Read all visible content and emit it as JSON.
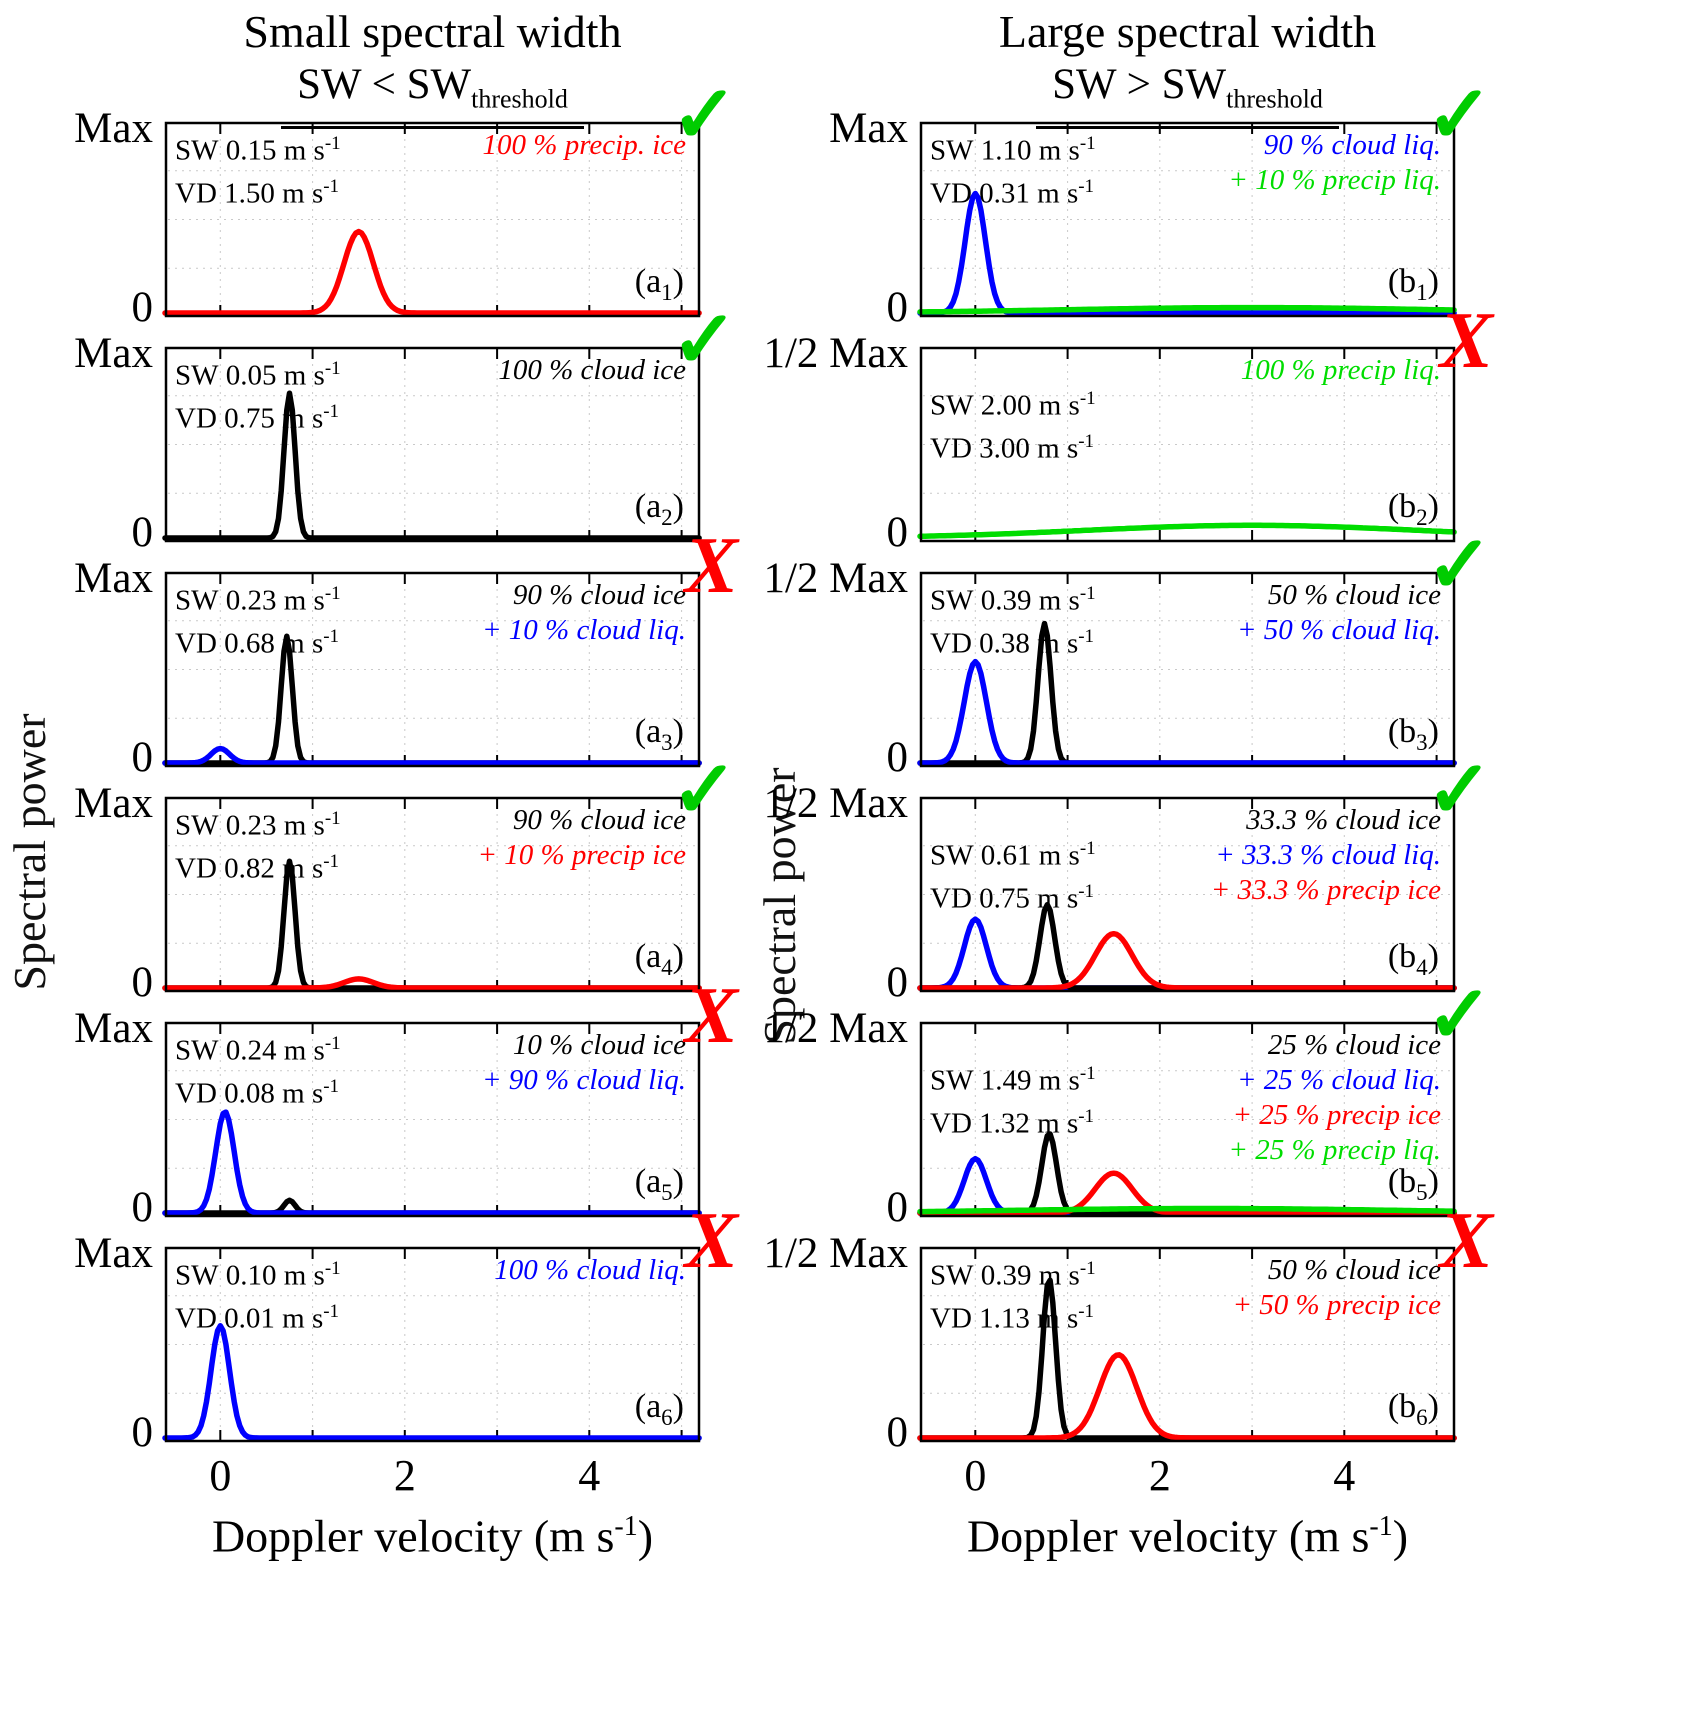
{
  "figure": {
    "headers": [
      {
        "title": "Small spectral width",
        "formula": "SW < SW",
        "formula_sub": "threshold"
      },
      {
        "title": "Large spectral width",
        "formula": "SW > SW",
        "formula_sub": "threshold"
      }
    ],
    "ylabel": "Spectral power",
    "xlabel_pre": "Doppler velocity (m s",
    "xlabel_sup": "-1",
    "xlabel_post": ")",
    "sw_prefix": "SW",
    "vd_prefix": "VD",
    "unit": "m s",
    "unit_sup": "-1",
    "check_glyph": "✓",
    "cross_glyph": "X",
    "colors": {
      "check": "#00cc00",
      "cross": "#ff0000",
      "precip_ice": "#ff0000",
      "cloud_ice": "#000000",
      "cloud_liq": "#0000ff",
      "precip_liq": "#00dd00"
    }
  },
  "chart_data": {
    "type": "line",
    "x_range": [
      -0.6,
      5.2
    ],
    "x_ticks": [
      "0",
      "2",
      "4"
    ],
    "x_tick_values": [
      0,
      2,
      4
    ],
    "y_axis": {
      "left_column_top": "Max",
      "right_column_top": "1/2 Max",
      "bottom": "0"
    },
    "panels": [
      {
        "id": "a1",
        "col": 0,
        "row": 0,
        "ymax": "Max",
        "ymin": "0",
        "sw": "0.15",
        "vd": "1.50",
        "verdict": "check",
        "label": {
          "pre": "(a",
          "sub": "1",
          "post": ")"
        },
        "composition": [
          {
            "text": "100 % precip. ice",
            "color": "#ff0000"
          }
        ],
        "peaks": [
          {
            "color": "#ff0000",
            "center": 1.5,
            "sigma": 0.16,
            "amp": 0.45
          }
        ]
      },
      {
        "id": "a2",
        "col": 0,
        "row": 1,
        "ymax": "Max",
        "ymin": "0",
        "sw": "0.05",
        "vd": "0.75",
        "verdict": "check",
        "label": {
          "pre": "(a",
          "sub": "2",
          "post": ")"
        },
        "composition": [
          {
            "text": "100 % cloud ice",
            "color": "#000000"
          }
        ],
        "peaks": [
          {
            "color": "#000000",
            "center": 0.75,
            "sigma": 0.06,
            "amp": 0.8
          }
        ]
      },
      {
        "id": "a3",
        "col": 0,
        "row": 2,
        "ymax": "Max",
        "ymin": "0",
        "sw": "0.23",
        "vd": "0.68",
        "verdict": "cross",
        "label": {
          "pre": "(a",
          "sub": "3",
          "post": ")"
        },
        "composition": [
          {
            "text": "90 % cloud ice",
            "color": "#000000"
          },
          {
            "text": "+ 10 % cloud liq.",
            "color": "#0000ff"
          }
        ],
        "peaks": [
          {
            "color": "#000000",
            "center": 0.72,
            "sigma": 0.06,
            "amp": 0.7
          },
          {
            "color": "#0000ff",
            "center": 0.0,
            "sigma": 0.1,
            "amp": 0.08
          }
        ]
      },
      {
        "id": "a4",
        "col": 0,
        "row": 3,
        "ymax": "Max",
        "ymin": "0",
        "sw": "0.23",
        "vd": "0.82",
        "verdict": "check",
        "label": {
          "pre": "(a",
          "sub": "4",
          "post": ")"
        },
        "composition": [
          {
            "text": "90 % cloud ice",
            "color": "#000000"
          },
          {
            "text": "+ 10 % precip ice",
            "color": "#ff0000"
          }
        ],
        "peaks": [
          {
            "color": "#000000",
            "center": 0.75,
            "sigma": 0.06,
            "amp": 0.7
          },
          {
            "color": "#ff0000",
            "center": 1.5,
            "sigma": 0.16,
            "amp": 0.05
          }
        ]
      },
      {
        "id": "a5",
        "col": 0,
        "row": 4,
        "ymax": "Max",
        "ymin": "0",
        "sw": "0.24",
        "vd": "0.08",
        "verdict": "cross",
        "label": {
          "pre": "(a",
          "sub": "5",
          "post": ")"
        },
        "composition": [
          {
            "text": "10 % cloud ice",
            "color": "#000000"
          },
          {
            "text": "+ 90 % cloud liq.",
            "color": "#0000ff"
          }
        ],
        "peaks": [
          {
            "color": "#000000",
            "center": 0.75,
            "sigma": 0.06,
            "amp": 0.07
          },
          {
            "color": "#0000ff",
            "center": 0.05,
            "sigma": 0.1,
            "amp": 0.56
          }
        ]
      },
      {
        "id": "a6",
        "col": 0,
        "row": 5,
        "ymax": "Max",
        "ymin": "0",
        "sw": "0.10",
        "vd": "0.01",
        "verdict": "cross",
        "label": {
          "pre": "(a",
          "sub": "6",
          "post": ")"
        },
        "composition": [
          {
            "text": "100 % cloud liq.",
            "color": "#0000ff"
          }
        ],
        "peaks": [
          {
            "color": "#0000ff",
            "center": 0.0,
            "sigma": 0.1,
            "amp": 0.62
          }
        ]
      },
      {
        "id": "b1",
        "col": 1,
        "row": 0,
        "ymax": "Max",
        "ymin": "0",
        "sw": "1.10",
        "vd": "0.31",
        "verdict": "check",
        "label": {
          "pre": "(b",
          "sub": "1",
          "post": ")"
        },
        "composition": [
          {
            "text": "90 % cloud liq.",
            "color": "#0000ff"
          },
          {
            "text": "+ 10 % precip liq.",
            "color": "#00dd00"
          }
        ],
        "peaks": [
          {
            "color": "#0000ff",
            "center": 0.0,
            "sigma": 0.11,
            "amp": 0.66
          },
          {
            "color": "#00dd00",
            "center": 3.0,
            "sigma": 2.0,
            "amp": 0.03
          }
        ]
      },
      {
        "id": "b2",
        "col": 1,
        "row": 1,
        "ymax": "1/2 Max",
        "ymin": "0",
        "sw": "2.00",
        "vd": "3.00",
        "verdict": "cross",
        "label": {
          "pre": "(b",
          "sub": "2",
          "post": ")"
        },
        "composition": [
          {
            "text": "100 % precip liq.",
            "color": "#00dd00"
          }
        ],
        "peaks": [
          {
            "color": "#00dd00",
            "center": 3.0,
            "sigma": 1.8,
            "amp": 0.07
          }
        ]
      },
      {
        "id": "b3",
        "col": 1,
        "row": 2,
        "ymax": "1/2 Max",
        "ymin": "0",
        "sw": "0.39",
        "vd": "0.38",
        "verdict": "check",
        "label": {
          "pre": "(b",
          "sub": "3",
          "post": ")"
        },
        "composition": [
          {
            "text": "50 % cloud ice",
            "color": "#000000"
          },
          {
            "text": "+ 50 % cloud liq.",
            "color": "#0000ff"
          }
        ],
        "peaks": [
          {
            "color": "#000000",
            "center": 0.75,
            "sigma": 0.07,
            "amp": 0.77
          },
          {
            "color": "#0000ff",
            "center": 0.0,
            "sigma": 0.12,
            "amp": 0.56
          }
        ]
      },
      {
        "id": "b4",
        "col": 1,
        "row": 3,
        "ymax": "1/2 Max",
        "ymin": "0",
        "sw": "0.61",
        "vd": "0.75",
        "verdict": "check",
        "label": {
          "pre": "(b",
          "sub": "4",
          "post": ")"
        },
        "composition": [
          {
            "text": "33.3 % cloud ice",
            "color": "#000000"
          },
          {
            "text": "+ 33.3 % cloud liq.",
            "color": "#0000ff"
          },
          {
            "text": "+ 33.3 % precip ice",
            "color": "#ff0000"
          }
        ],
        "peaks": [
          {
            "color": "#0000ff",
            "center": 0.0,
            "sigma": 0.12,
            "amp": 0.38
          },
          {
            "color": "#000000",
            "center": 0.78,
            "sigma": 0.08,
            "amp": 0.46
          },
          {
            "color": "#ff0000",
            "center": 1.5,
            "sigma": 0.2,
            "amp": 0.3
          }
        ]
      },
      {
        "id": "b5",
        "col": 1,
        "row": 4,
        "ymax": "1/2 Max",
        "ymin": "0",
        "sw": "1.49",
        "vd": "1.32",
        "verdict": "check",
        "label": {
          "pre": "(b",
          "sub": "5",
          "post": ")"
        },
        "composition": [
          {
            "text": "25 % cloud ice",
            "color": "#000000"
          },
          {
            "text": "+ 25 % cloud liq.",
            "color": "#0000ff"
          },
          {
            "text": "+ 25 % precip ice",
            "color": "#ff0000"
          },
          {
            "text": "+ 25 % precip liq.",
            "color": "#00dd00"
          }
        ],
        "peaks": [
          {
            "color": "#0000ff",
            "center": 0.0,
            "sigma": 0.12,
            "amp": 0.3
          },
          {
            "color": "#000000",
            "center": 0.8,
            "sigma": 0.08,
            "amp": 0.44
          },
          {
            "color": "#ff0000",
            "center": 1.5,
            "sigma": 0.2,
            "amp": 0.22
          },
          {
            "color": "#00dd00",
            "center": 2.5,
            "sigma": 2.0,
            "amp": 0.025
          }
        ]
      },
      {
        "id": "b6",
        "col": 1,
        "row": 5,
        "ymax": "1/2 Max",
        "ymin": "0",
        "sw": "0.39",
        "vd": "1.13",
        "verdict": "cross",
        "label": {
          "pre": "(b",
          "sub": "6",
          "post": ")"
        },
        "composition": [
          {
            "text": "50 % cloud ice",
            "color": "#000000"
          },
          {
            "text": "+ 50 % precip ice",
            "color": "#ff0000"
          }
        ],
        "peaks": [
          {
            "color": "#000000",
            "center": 0.8,
            "sigma": 0.07,
            "amp": 0.88
          },
          {
            "color": "#ff0000",
            "center": 1.55,
            "sigma": 0.2,
            "amp": 0.46
          }
        ]
      }
    ]
  }
}
